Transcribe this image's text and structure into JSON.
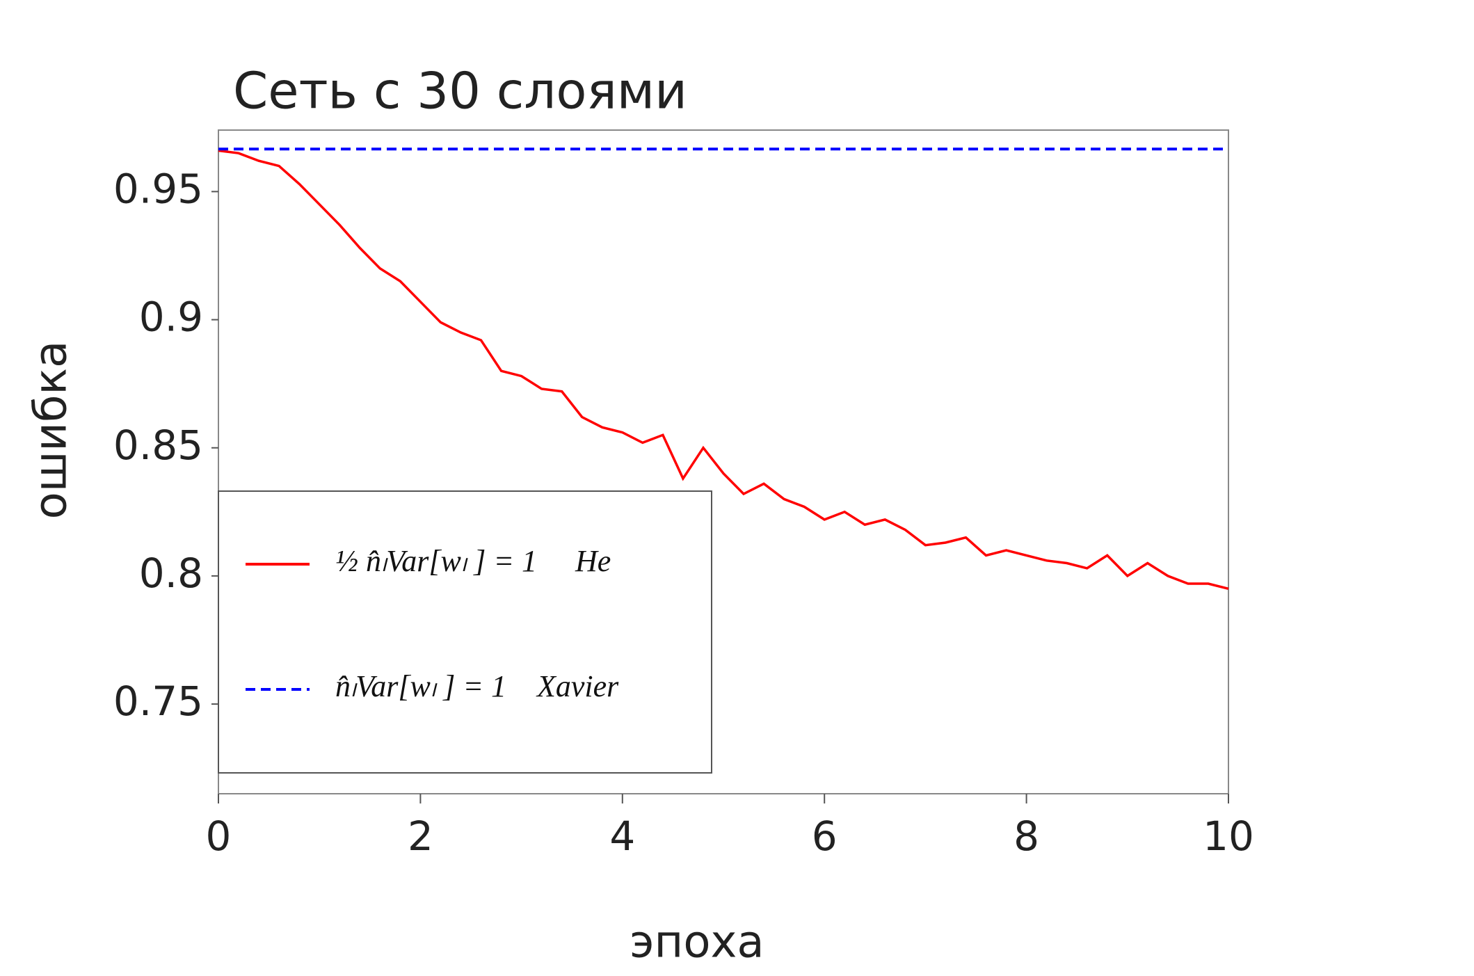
{
  "chart_data": {
    "type": "line",
    "title": "Сеть с 30 слоями",
    "x_label": "эпоха",
    "y_label": "ошибка",
    "x": [
      0,
      0.2,
      0.4,
      0.6,
      0.8,
      1.0,
      1.2,
      1.4,
      1.6,
      1.8,
      2.0,
      2.2,
      2.4,
      2.6,
      2.8,
      3.0,
      3.2,
      3.4,
      3.6,
      3.8,
      4.0,
      4.2,
      4.4,
      4.6,
      4.8,
      5.0,
      5.2,
      5.4,
      5.6,
      5.8,
      6.0,
      6.2,
      6.4,
      6.6,
      6.8,
      7.0,
      7.2,
      7.4,
      7.6,
      7.8,
      8.0,
      8.2,
      8.4,
      8.6,
      8.8,
      9.0,
      9.2,
      9.4,
      9.6,
      9.8,
      10.0
    ],
    "series": [
      {
        "name": "½ n̂ₗVar[wₗ ] = 1     He",
        "color": "#ff0000",
        "dash": false,
        "values": [
          0.966,
          0.965,
          0.962,
          0.96,
          0.953,
          0.945,
          0.937,
          0.928,
          0.92,
          0.915,
          0.907,
          0.899,
          0.895,
          0.892,
          0.88,
          0.878,
          0.873,
          0.872,
          0.862,
          0.858,
          0.856,
          0.852,
          0.855,
          0.838,
          0.85,
          0.84,
          0.832,
          0.836,
          0.83,
          0.827,
          0.822,
          0.825,
          0.82,
          0.822,
          0.818,
          0.812,
          0.813,
          0.815,
          0.808,
          0.81,
          0.808,
          0.806,
          0.805,
          0.803,
          0.808,
          0.8,
          0.805,
          0.8,
          0.797,
          0.797,
          0.795
        ]
      },
      {
        "name": "n̂ₗVar[wₗ ] = 1    Xavier",
        "color": "#0000ff",
        "dash": true,
        "values": [
          0.9666,
          0.9666,
          0.9666,
          0.9666,
          0.9666,
          0.9666,
          0.9666,
          0.9666,
          0.9666,
          0.9666,
          0.9666,
          0.9666,
          0.9666,
          0.9666,
          0.9666,
          0.9666,
          0.9666,
          0.9666,
          0.9666,
          0.9666,
          0.9666,
          0.9666,
          0.9666,
          0.9666,
          0.9666,
          0.9666,
          0.9666,
          0.9666,
          0.9666,
          0.9666,
          0.9666,
          0.9666,
          0.9666,
          0.9666,
          0.9666,
          0.9666,
          0.9666,
          0.9666,
          0.9666,
          0.9666,
          0.9666,
          0.9666,
          0.9666,
          0.9666,
          0.9666,
          0.9666,
          0.9666,
          0.9666,
          0.9666,
          0.9666,
          0.9666
        ]
      }
    ],
    "xlim": [
      0,
      10
    ],
    "xticks": [
      0,
      2,
      4,
      6,
      8,
      10
    ],
    "ylim": [
      0.715,
      0.974
    ],
    "yticks": [
      0.75,
      0.8,
      0.85,
      0.9,
      0.95
    ],
    "grid": false,
    "legend": "lower left"
  }
}
